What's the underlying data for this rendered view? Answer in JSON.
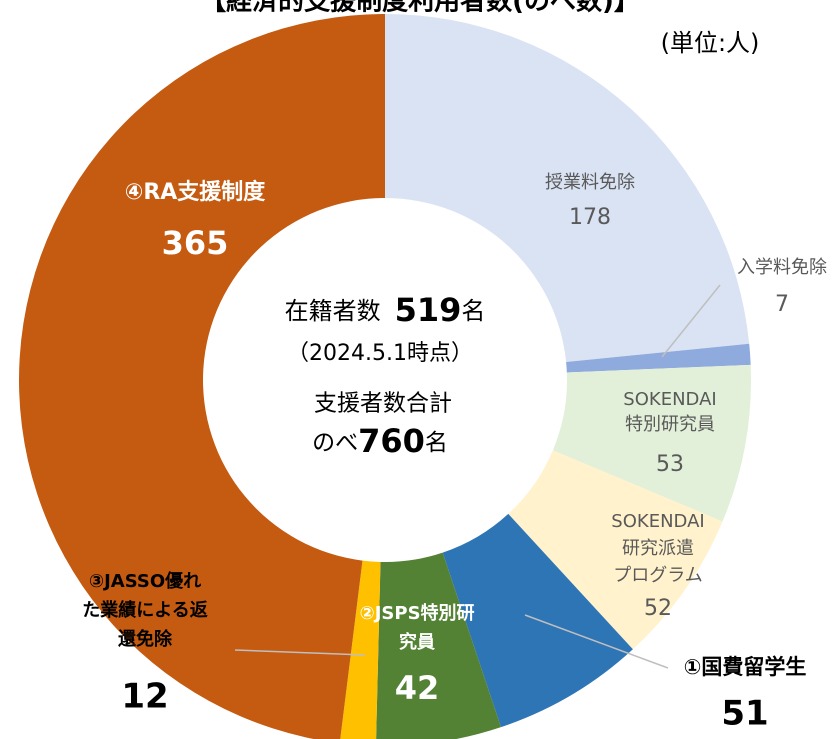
{
  "chart_data": {
    "type": "donut",
    "title": "【経済的支援制度利用者数(のべ数)】",
    "unit_note": "(単位:人)",
    "categories": [
      [
        "授業料免除"
      ],
      [
        "入学料免除"
      ],
      [
        "SOKENDAI",
        "特別研究員"
      ],
      [
        "SOKENDAI",
        "研究派遣",
        "プログラム"
      ],
      [
        "①国費留学生"
      ],
      [
        "②JSPS特別研",
        "究員"
      ],
      [
        "③JASSO優れ",
        "た業績による返",
        "還免除"
      ],
      [
        "④RA支援制度"
      ]
    ],
    "values": [
      178,
      7,
      53,
      52,
      51,
      42,
      12,
      365
    ],
    "colors": [
      "#dae3f3",
      "#8faadc",
      "#e2f0d9",
      "#fff2cc",
      "#2e75b6",
      "#548235",
      "#ffc000",
      "#c55a11"
    ],
    "center": {
      "enrolled_label": "在籍者数",
      "enrolled": 519,
      "unit": "名",
      "date": "（2024.5.1時点）",
      "total_label": "支援者数合計",
      "total_prefix": "のべ",
      "total": 760
    }
  }
}
